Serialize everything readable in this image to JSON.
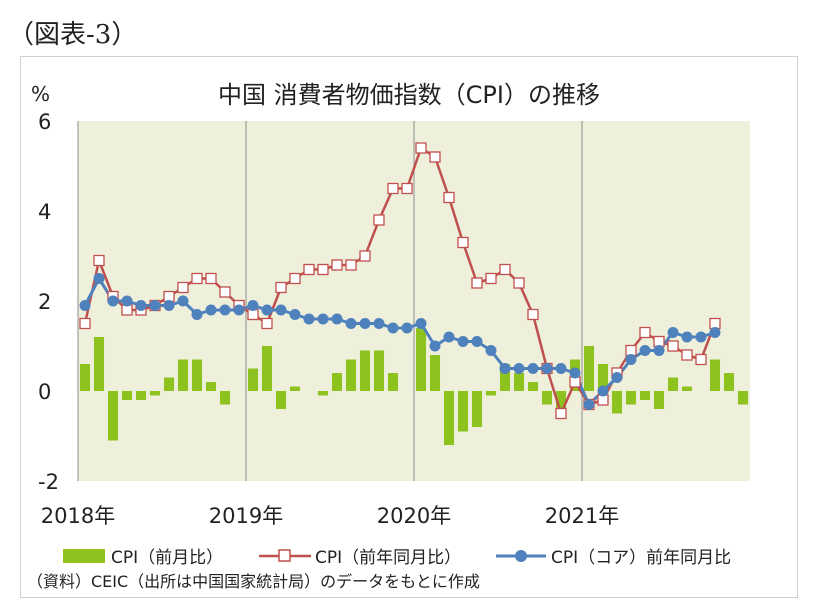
{
  "figure_label": "（図表-3）",
  "source_note": "（資料）CEIC（出所は中国国家統計局）のデータをもとに作成",
  "colors": {
    "plot_bg": "#eef0dc",
    "bar": "#8dc21f",
    "cpi_yoy_line": "#c0504d",
    "core_line": "#4f81bd",
    "grid": "#8c8c8c"
  },
  "chart_data": {
    "type": "bar+line",
    "title": "中国  消費者物価指数（CPI）の推移",
    "ylabel": "%",
    "ylim": [
      -2,
      6
    ],
    "yticks": [
      "6",
      "4",
      "2",
      "0",
      "-2"
    ],
    "ytick_values": [
      6,
      4,
      2,
      0,
      -2
    ],
    "year_labels": [
      "2018年",
      "2019年",
      "2020年",
      "2021年"
    ],
    "year_start_index": [
      0,
      12,
      24,
      36
    ],
    "months": [
      "2018-01",
      "2018-02",
      "2018-03",
      "2018-04",
      "2018-05",
      "2018-06",
      "2018-07",
      "2018-08",
      "2018-09",
      "2018-10",
      "2018-11",
      "2018-12",
      "2019-01",
      "2019-02",
      "2019-03",
      "2019-04",
      "2019-05",
      "2019-06",
      "2019-07",
      "2019-08",
      "2019-09",
      "2019-10",
      "2019-11",
      "2019-12",
      "2020-01",
      "2020-02",
      "2020-03",
      "2020-04",
      "2020-05",
      "2020-06",
      "2020-07",
      "2020-08",
      "2020-09",
      "2020-10",
      "2020-11",
      "2020-12",
      "2021-01",
      "2021-02",
      "2021-03",
      "2021-04",
      "2021-05",
      "2021-06",
      "2021-07",
      "2021-08",
      "2021-09",
      "2021-10",
      "2021-11",
      "2021-12"
    ],
    "series": [
      {
        "name": "CPI（前月比）",
        "kind": "bar",
        "values": [
          0.6,
          1.2,
          -1.1,
          -0.2,
          -0.2,
          -0.1,
          0.3,
          0.7,
          0.7,
          0.2,
          -0.3,
          0.0,
          0.5,
          1.0,
          -0.4,
          0.1,
          0.0,
          -0.1,
          0.4,
          0.7,
          0.9,
          0.9,
          0.4,
          0.0,
          1.4,
          0.8,
          -1.2,
          -0.9,
          -0.8,
          -0.1,
          0.6,
          0.4,
          0.2,
          -0.3,
          -0.6,
          0.7,
          1.0,
          0.6,
          -0.5,
          -0.3,
          -0.2,
          -0.4,
          0.3,
          0.1,
          0.0,
          0.7,
          0.4,
          -0.3
        ]
      },
      {
        "name": "CPI（前年同月比）",
        "kind": "line",
        "marker": "square-open",
        "values": [
          1.5,
          2.9,
          2.1,
          1.8,
          1.8,
          1.9,
          2.1,
          2.3,
          2.5,
          2.5,
          2.2,
          1.9,
          1.7,
          1.5,
          2.3,
          2.5,
          2.7,
          2.7,
          2.8,
          2.8,
          3.0,
          3.8,
          4.5,
          4.5,
          5.4,
          5.2,
          4.3,
          3.3,
          2.4,
          2.5,
          2.7,
          2.4,
          1.7,
          0.5,
          -0.5,
          0.2,
          -0.3,
          -0.2,
          0.4,
          0.9,
          1.3,
          1.1,
          1.0,
          0.8,
          0.7,
          1.5,
          null,
          null
        ]
      },
      {
        "name": "CPI（コア）前年同月比",
        "kind": "line",
        "marker": "circle-filled",
        "values": [
          1.9,
          2.5,
          2.0,
          2.0,
          1.9,
          1.9,
          1.9,
          2.0,
          1.7,
          1.8,
          1.8,
          1.8,
          1.9,
          1.8,
          1.8,
          1.7,
          1.6,
          1.6,
          1.6,
          1.5,
          1.5,
          1.5,
          1.4,
          1.4,
          1.5,
          1.0,
          1.2,
          1.1,
          1.1,
          0.9,
          0.5,
          0.5,
          0.5,
          0.5,
          0.5,
          0.4,
          -0.3,
          0.0,
          0.3,
          0.7,
          0.9,
          0.9,
          1.3,
          1.2,
          1.2,
          1.3,
          null,
          null
        ]
      }
    ]
  }
}
